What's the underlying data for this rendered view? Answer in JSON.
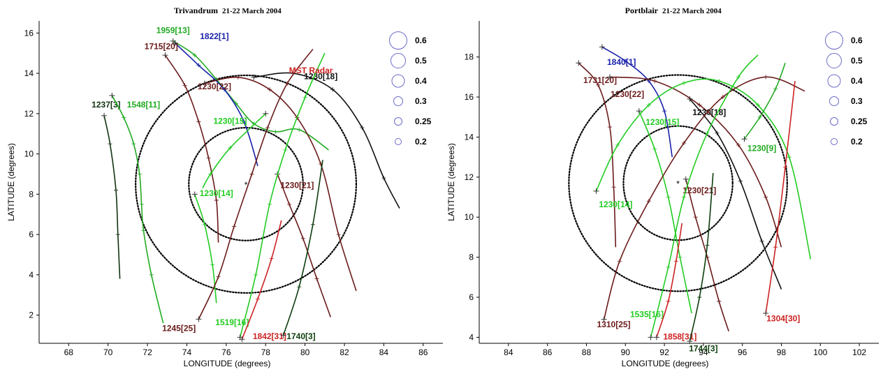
{
  "chart_data": [
    {
      "type": "line",
      "title": "Trivandrum",
      "subtitle": "21-22 March 2004",
      "xlabel": "LONGITUDE (degrees)",
      "ylabel": "LATITUDE (degrees)",
      "xlim": [
        66.5,
        87
      ],
      "ylim": [
        0.6,
        16.6
      ],
      "xticks": [
        68,
        70,
        72,
        74,
        76,
        78,
        80,
        82,
        84,
        86
      ],
      "yticks": [
        2,
        4,
        6,
        8,
        10,
        12,
        14,
        16
      ],
      "station": {
        "lon": 77.0,
        "lat": 8.5,
        "marker": "*"
      },
      "circles": [
        {
          "center": [
            77.0,
            8.5
          ],
          "rx": 2.9,
          "ry": 2.8
        },
        {
          "center": [
            77.0,
            8.5
          ],
          "rx": 5.6,
          "ry": 5.4
        }
      ],
      "legend": {
        "position": "top-right",
        "values": [
          "0.6",
          "0.5",
          "0.4",
          "0.3",
          "0.25",
          "0.2"
        ]
      },
      "annotations": [
        {
          "text": "MST Radar",
          "lon": 80.3,
          "lat": 14.0,
          "color": "#cc2222"
        }
      ],
      "series": [
        {
          "name": "1237[3]",
          "color": "#113311",
          "label_at": [
            69.9,
            12.3
          ],
          "points": [
            [
              69.8,
              11.9
            ],
            [
              70.1,
              10.5
            ],
            [
              70.4,
              8.2
            ],
            [
              70.5,
              6.0
            ],
            [
              70.6,
              3.8
            ]
          ]
        },
        {
          "name": "1548[11]",
          "color": "#22aa22",
          "label_at": [
            71.8,
            12.3
          ],
          "points": [
            [
              70.2,
              12.9
            ],
            [
              70.8,
              11.8
            ],
            [
              71.3,
              10.5
            ],
            [
              71.6,
              9.0
            ],
            [
              71.7,
              7.5
            ],
            [
              71.8,
              6.2
            ],
            [
              72.2,
              4.0
            ],
            [
              72.8,
              1.6
            ]
          ]
        },
        {
          "name": "1959[13]",
          "color": "#22aa22",
          "label_at": [
            73.3,
            16.0
          ],
          "points": [
            [
              73.3,
              15.6
            ],
            [
              74.4,
              14.9
            ],
            [
              75.5,
              13.7
            ],
            [
              76.5,
              12.5
            ],
            [
              77.4,
              11.5
            ],
            [
              78.5,
              11.1
            ],
            [
              79.7,
              11.2
            ],
            [
              81.2,
              10.2
            ]
          ]
        },
        {
          "name": "1822[1]",
          "color": "#1a22aa",
          "label_at": [
            75.4,
            15.7
          ],
          "points": [
            [
              73.4,
              15.5
            ],
            [
              74.6,
              14.4
            ],
            [
              75.9,
              13.2
            ],
            [
              76.9,
              11.6
            ],
            [
              77.6,
              9.4
            ]
          ]
        },
        {
          "name": "1715[20]",
          "color": "#6b1a1a",
          "label_at": [
            72.7,
            15.2
          ],
          "points": [
            [
              72.9,
              14.9
            ],
            [
              73.9,
              13.4
            ],
            [
              74.6,
              11.6
            ],
            [
              75.1,
              9.8
            ],
            [
              75.5,
              7.7
            ],
            [
              75.6,
              5.6
            ]
          ]
        },
        {
          "name": "1230[22]",
          "color": "#6b1a1a",
          "label_at": [
            75.4,
            13.2
          ],
          "points": [
            [
              74.9,
              13.5
            ],
            [
              76.6,
              13.8
            ],
            [
              78.2,
              13.2
            ],
            [
              79.6,
              11.8
            ],
            [
              80.8,
              9.5
            ],
            [
              81.7,
              6.0
            ],
            [
              82.6,
              3.2
            ]
          ]
        },
        {
          "name": "1230[18]",
          "color": "#111111",
          "label_at": [
            80.8,
            13.7
          ],
          "points": [
            [
              77.4,
              13.8
            ],
            [
              79.4,
              14.0
            ],
            [
              81.4,
              13.2
            ],
            [
              82.9,
              11.3
            ],
            [
              84.0,
              8.8
            ],
            [
              84.8,
              7.3
            ]
          ]
        },
        {
          "name": "1230[15]",
          "color": "#22cc22",
          "label_at": [
            76.2,
            11.5
          ],
          "points": [
            [
              78.0,
              12.0
            ],
            [
              76.2,
              10.3
            ],
            [
              75.2,
              9.0
            ],
            [
              74.8,
              8.3
            ]
          ]
        },
        {
          "name": "1230[14]",
          "color": "#22cc22",
          "label_at": [
            75.5,
            7.9
          ],
          "points": [
            [
              74.4,
              8.0
            ],
            [
              74.9,
              6.5
            ],
            [
              75.3,
              4.5
            ],
            [
              75.5,
              2.6
            ]
          ]
        },
        {
          "name": "1230[21]",
          "color": "#6b1a1a",
          "label_at": [
            79.6,
            8.3
          ],
          "points": [
            [
              78.6,
              9.0
            ],
            [
              79.2,
              7.5
            ],
            [
              79.9,
              5.8
            ],
            [
              80.6,
              3.8
            ],
            [
              81.3,
              1.9
            ]
          ]
        },
        {
          "name": "1245[25]",
          "color": "#6b1a1a",
          "label_at": [
            73.6,
            1.2
          ],
          "points": [
            [
              74.6,
              1.8
            ],
            [
              75.6,
              3.9
            ],
            [
              76.4,
              6.4
            ],
            [
              77.3,
              9.0
            ],
            [
              78.1,
              11.3
            ],
            [
              79.1,
              13.5
            ],
            [
              80.4,
              15.2
            ]
          ]
        },
        {
          "name": "1519[16]",
          "color": "#22cc22",
          "label_at": [
            76.3,
            1.5
          ],
          "points": [
            [
              76.7,
              0.9
            ],
            [
              77.5,
              4.0
            ],
            [
              78.2,
              7.5
            ],
            [
              79.0,
              10.2
            ],
            [
              80.0,
              12.8
            ],
            [
              81.0,
              15.0
            ]
          ]
        },
        {
          "name": "1842[31]",
          "color": "#cc2222",
          "label_at": [
            78.2,
            0.8
          ],
          "points": [
            [
              76.8,
              0.8
            ],
            [
              77.6,
              2.8
            ],
            [
              78.3,
              4.8
            ],
            [
              78.8,
              6.7
            ]
          ]
        },
        {
          "name": "1740[3]",
          "color": "#0d3d0d",
          "label_at": [
            79.8,
            0.8
          ],
          "points": [
            [
              78.9,
              1.0
            ],
            [
              79.7,
              3.4
            ],
            [
              80.4,
              6.5
            ],
            [
              80.9,
              9.7
            ]
          ]
        }
      ]
    },
    {
      "type": "line",
      "title": "Portblair",
      "subtitle": "21-22 March 2004",
      "xlabel": "LONGITUDE (degrees)",
      "ylabel": "LATITUDE (degrees)",
      "xlim": [
        82.5,
        103
      ],
      "ylim": [
        3.7,
        19.8
      ],
      "xticks": [
        84,
        86,
        88,
        90,
        92,
        94,
        96,
        98,
        100,
        102
      ],
      "yticks": [
        4,
        6,
        8,
        10,
        12,
        14,
        16,
        18
      ],
      "station": {
        "lon": 92.7,
        "lat": 11.7,
        "marker": "*"
      },
      "circles": [
        {
          "center": [
            92.7,
            11.7
          ],
          "rx": 2.8,
          "ry": 2.85
        },
        {
          "center": [
            92.7,
            11.7
          ],
          "rx": 5.6,
          "ry": 5.4
        }
      ],
      "legend": {
        "position": "top-right",
        "values": [
          "0.6",
          "0.5",
          "0.4",
          "0.3",
          "0.25",
          "0.2"
        ]
      },
      "annotations": [],
      "series": [
        {
          "name": "1840[1]",
          "color": "#1a22aa",
          "label_at": [
            89.8,
            17.6
          ],
          "points": [
            [
              88.8,
              18.5
            ],
            [
              90.0,
              17.8
            ],
            [
              91.2,
              16.8
            ],
            [
              92.0,
              15.3
            ],
            [
              92.4,
              13.0
            ]
          ]
        },
        {
          "name": "1731[20]",
          "color": "#6b1a1a",
          "label_at": [
            88.7,
            16.7
          ],
          "points": [
            [
              87.6,
              17.7
            ],
            [
              88.6,
              16.6
            ],
            [
              89.2,
              14.5
            ],
            [
              89.4,
              11.5
            ],
            [
              89.5,
              8.5
            ]
          ]
        },
        {
          "name": "1230[22]",
          "color": "#6b1a1a",
          "label_at": [
            90.1,
            16.0
          ],
          "points": [
            [
              89.2,
              17.0
            ],
            [
              91.5,
              16.8
            ],
            [
              93.8,
              15.6
            ],
            [
              95.8,
              13.6
            ],
            [
              97.2,
              11.0
            ],
            [
              98.0,
              8.5
            ]
          ]
        },
        {
          "name": "1230[18]",
          "color": "#111111",
          "label_at": [
            94.3,
            15.1
          ],
          "points": [
            [
              93.3,
              15.9
            ],
            [
              94.7,
              14.2
            ],
            [
              95.9,
              11.8
            ],
            [
              97.0,
              8.8
            ],
            [
              98.0,
              6.4
            ]
          ]
        },
        {
          "name": "1230[15]",
          "color": "#22cc22",
          "label_at": [
            91.9,
            14.6
          ],
          "points": [
            [
              90.7,
              15.3
            ],
            [
              91.5,
              13.4
            ],
            [
              92.2,
              11.0
            ],
            [
              92.8,
              8.0
            ],
            [
              93.4,
              5.2
            ]
          ]
        },
        {
          "name": "1230[14]",
          "color": "#22cc22",
          "label_at": [
            89.5,
            10.5
          ],
          "points": [
            [
              88.5,
              11.3
            ],
            [
              89.6,
              13.6
            ],
            [
              91.2,
              15.6
            ],
            [
              93.0,
              16.7
            ],
            [
              94.8,
              16.8
            ],
            [
              96.8,
              15.6
            ],
            [
              98.4,
              13.0
            ],
            [
              99.5,
              7.9
            ]
          ]
        },
        {
          "name": "1230[21]",
          "color": "#6b1a1a",
          "label_at": [
            93.8,
            11.2
          ],
          "points": [
            [
              93.1,
              11.9
            ],
            [
              93.6,
              10.0
            ],
            [
              94.2,
              8.0
            ],
            [
              94.8,
              5.8
            ],
            [
              95.3,
              4.3
            ]
          ]
        },
        {
          "name": "1230[9]",
          "color": "#22aa22",
          "label_at": [
            97.0,
            13.3
          ],
          "points": [
            [
              96.1,
              13.9
            ],
            [
              96.9,
              15.0
            ],
            [
              97.7,
              16.4
            ],
            [
              98.2,
              17.7
            ]
          ]
        },
        {
          "name": "1310[25]",
          "color": "#6b1a1a",
          "label_at": [
            89.4,
            4.5
          ],
          "points": [
            [
              88.9,
              4.9
            ],
            [
              89.7,
              7.8
            ],
            [
              91.2,
              10.8
            ],
            [
              93.0,
              13.7
            ],
            [
              95.0,
              16.0
            ],
            [
              97.2,
              17.0
            ],
            [
              99.2,
              16.3
            ]
          ]
        },
        {
          "name": "1535[16]",
          "color": "#22cc22",
          "label_at": [
            91.1,
            5.0
          ],
          "points": [
            [
              91.3,
              4.0
            ],
            [
              92.2,
              7.5
            ],
            [
              93.0,
              11.0
            ],
            [
              94.2,
              14.2
            ],
            [
              95.8,
              17.0
            ],
            [
              96.8,
              18.1
            ]
          ]
        },
        {
          "name": "1858[31]",
          "color": "#cc2222",
          "label_at": [
            92.8,
            3.9
          ],
          "points": [
            [
              91.6,
              4.0
            ],
            [
              92.2,
              5.8
            ],
            [
              92.6,
              7.8
            ],
            [
              92.9,
              9.7
            ]
          ]
        },
        {
          "name": "1744[3]",
          "color": "#0d3d0d",
          "label_at": [
            94.0,
            3.3
          ],
          "points": [
            [
              93.3,
              3.8
            ],
            [
              93.8,
              6.0
            ],
            [
              94.2,
              8.6
            ],
            [
              94.5,
              12.2
            ]
          ]
        },
        {
          "name": "1304[30]",
          "color": "#cc2222",
          "label_at": [
            98.1,
            4.8
          ],
          "points": [
            [
              97.2,
              5.2
            ],
            [
              97.7,
              8.5
            ],
            [
              98.2,
              12.5
            ],
            [
              98.7,
              16.8
            ]
          ]
        }
      ]
    }
  ]
}
